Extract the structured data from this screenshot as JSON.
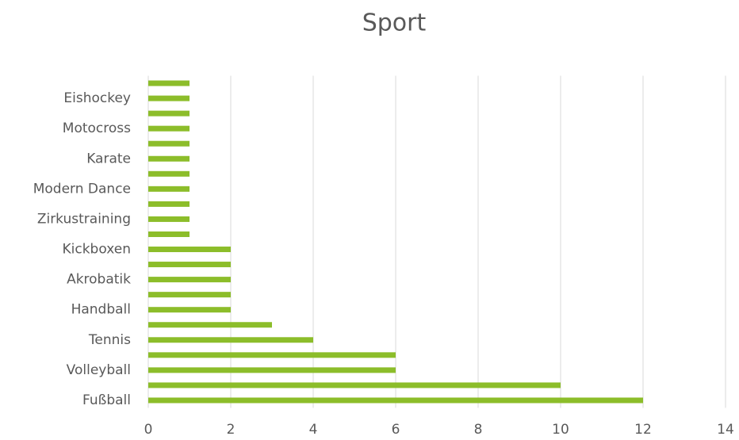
{
  "chart_data": {
    "type": "barh",
    "title": "Sport",
    "categories": [
      "Fußball",
      null,
      "Volleyball",
      null,
      "Tennis",
      null,
      "Handball",
      null,
      "Akrobatik",
      null,
      "Kickboxen",
      null,
      "Zirkustraining",
      null,
      "Modern Dance",
      null,
      "Karate",
      null,
      "Motocross",
      null,
      "Eishockey",
      null
    ],
    "values": [
      12,
      10,
      6,
      6,
      4,
      3,
      2,
      2,
      2,
      2,
      2,
      1,
      1,
      1,
      1,
      1,
      1,
      1,
      1,
      1,
      1,
      1
    ],
    "color": "#8cbd2a",
    "xlim": [
      0,
      14
    ],
    "xticks": [
      0,
      2,
      4,
      6,
      8,
      10,
      12,
      14
    ],
    "grid": true
  }
}
